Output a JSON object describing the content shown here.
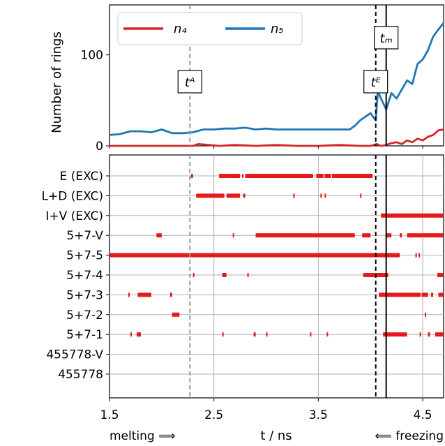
{
  "chart_data": [
    {
      "type": "line",
      "ylabel": "Number of rings",
      "xlim": [
        1.5,
        4.7
      ],
      "ylim": [
        0,
        155
      ],
      "yticks": [
        0,
        100
      ],
      "legend": {
        "placement": "top-left",
        "entries": [
          "n₄",
          "n₅"
        ]
      },
      "colors": {
        "n4": "#d62728",
        "n5": "#1f77b4"
      },
      "series": [
        {
          "name": "n₄",
          "color": "#d62728",
          "x": [
            1.5,
            2.3,
            2.35,
            2.45,
            2.55,
            2.7,
            2.9,
            3.1,
            3.3,
            3.5,
            3.7,
            3.9,
            4.0,
            4.06,
            4.1,
            4.15,
            4.2,
            4.25,
            4.3,
            4.35,
            4.4,
            4.45,
            4.5,
            4.55,
            4.6,
            4.65,
            4.7
          ],
          "values": [
            0,
            0,
            2,
            1,
            0,
            1,
            0,
            1,
            0,
            0,
            1,
            0,
            0,
            2,
            0,
            1,
            3,
            4,
            2,
            6,
            4,
            8,
            6,
            10,
            12,
            17,
            18
          ]
        },
        {
          "name": "n₅",
          "color": "#1f77b4",
          "x": [
            1.5,
            1.6,
            1.7,
            1.8,
            1.9,
            2.0,
            2.1,
            2.2,
            2.3,
            2.4,
            2.5,
            2.6,
            2.7,
            2.8,
            2.9,
            3.0,
            3.1,
            3.2,
            3.3,
            3.4,
            3.5,
            3.6,
            3.7,
            3.8,
            3.85,
            3.9,
            3.95,
            4.0,
            4.05,
            4.07,
            4.1,
            4.15,
            4.2,
            4.25,
            4.3,
            4.35,
            4.4,
            4.45,
            4.5,
            4.55,
            4.6,
            4.65,
            4.7
          ],
          "values": [
            12,
            13,
            16,
            16,
            15,
            18,
            14,
            14,
            15,
            18,
            18,
            19,
            19,
            20,
            18,
            19,
            18,
            18,
            18,
            18,
            18,
            18,
            18,
            18,
            22,
            28,
            32,
            36,
            28,
            60,
            52,
            40,
            58,
            52,
            62,
            72,
            68,
            90,
            95,
            105,
            120,
            128,
            135
          ]
        }
      ],
      "vlines": [
        {
          "label": "tᴬ",
          "x": 2.27,
          "style": "dashed",
          "color": "#999999"
        },
        {
          "label": "tᴱ",
          "x": 4.05,
          "style": "dashed",
          "color": "#000000"
        },
        {
          "label": "tₘ",
          "x": 4.15,
          "style": "solid",
          "color": "#000000"
        }
      ]
    },
    {
      "type": "event-raster",
      "xlabel": "t / ns",
      "xlim": [
        1.5,
        4.7
      ],
      "xticks": [
        "1.5",
        "2.5",
        "3.5",
        "4.5"
      ],
      "grid": true,
      "color": "#e41a1c",
      "categories": [
        "E (EXC)",
        "L+D (EXC)",
        "I+V (EXC)",
        "5+7-V",
        "5+7-5",
        "5+7-4",
        "5+7-3",
        "5+7-2",
        "5+7-1",
        "455778-V",
        "455778"
      ],
      "segments": {
        "E (EXC)": [
          [
            2.28,
            2.3
          ],
          [
            2.55,
            2.6
          ],
          [
            2.6,
            2.75
          ],
          [
            2.77,
            2.78
          ],
          [
            2.8,
            3.45
          ],
          [
            3.48,
            3.55
          ],
          [
            3.56,
            3.62
          ],
          [
            3.63,
            4.02
          ]
        ],
        "L+D (EXC)": [
          [
            2.33,
            2.6
          ],
          [
            2.62,
            2.75
          ],
          [
            2.78,
            2.8
          ],
          [
            3.26,
            3.27
          ],
          [
            3.52,
            3.53
          ],
          [
            3.56,
            3.57
          ],
          [
            3.9,
            3.91
          ]
        ],
        "I+V (EXC)": [
          [
            4.1,
            4.7
          ]
        ],
        "5+7-V": [
          [
            1.95,
            2.0
          ],
          [
            2.68,
            2.69
          ],
          [
            2.9,
            3.85
          ],
          [
            3.92,
            4.0
          ],
          [
            4.15,
            4.2
          ],
          [
            4.28,
            4.3
          ],
          [
            4.35,
            4.7
          ]
        ],
        "5+7-5": [
          [
            1.5,
            4.28
          ],
          [
            4.43,
            4.44
          ],
          [
            4.46,
            4.47
          ]
        ],
        "5+7-4": [
          [
            2.3,
            2.31
          ],
          [
            2.58,
            2.62
          ],
          [
            2.82,
            2.83
          ],
          [
            3.93,
            4.17
          ],
          [
            4.64,
            4.7
          ]
        ],
        "5+7-3": [
          [
            1.68,
            1.69
          ],
          [
            1.77,
            1.9
          ],
          [
            2.08,
            2.1
          ],
          [
            4.08,
            4.48
          ],
          [
            4.49,
            4.55
          ],
          [
            4.58,
            4.6
          ],
          [
            4.65,
            4.7
          ]
        ],
        "5+7-2": [
          [
            2.1,
            2.17
          ],
          [
            4.52,
            4.53
          ]
        ],
        "5+7-1": [
          [
            1.7,
            1.71
          ],
          [
            1.76,
            1.8
          ],
          [
            2.58,
            2.59
          ],
          [
            2.88,
            2.9
          ],
          [
            3.0,
            3.01
          ],
          [
            3.42,
            3.43
          ],
          [
            3.58,
            3.59
          ],
          [
            4.12,
            4.35
          ],
          [
            4.47,
            4.48
          ],
          [
            4.55,
            4.57
          ],
          [
            4.62,
            4.7
          ]
        ],
        "455778-V": [],
        "455778": []
      },
      "annotations": [
        "melting ⟹",
        "⟸ freezing"
      ]
    }
  ]
}
